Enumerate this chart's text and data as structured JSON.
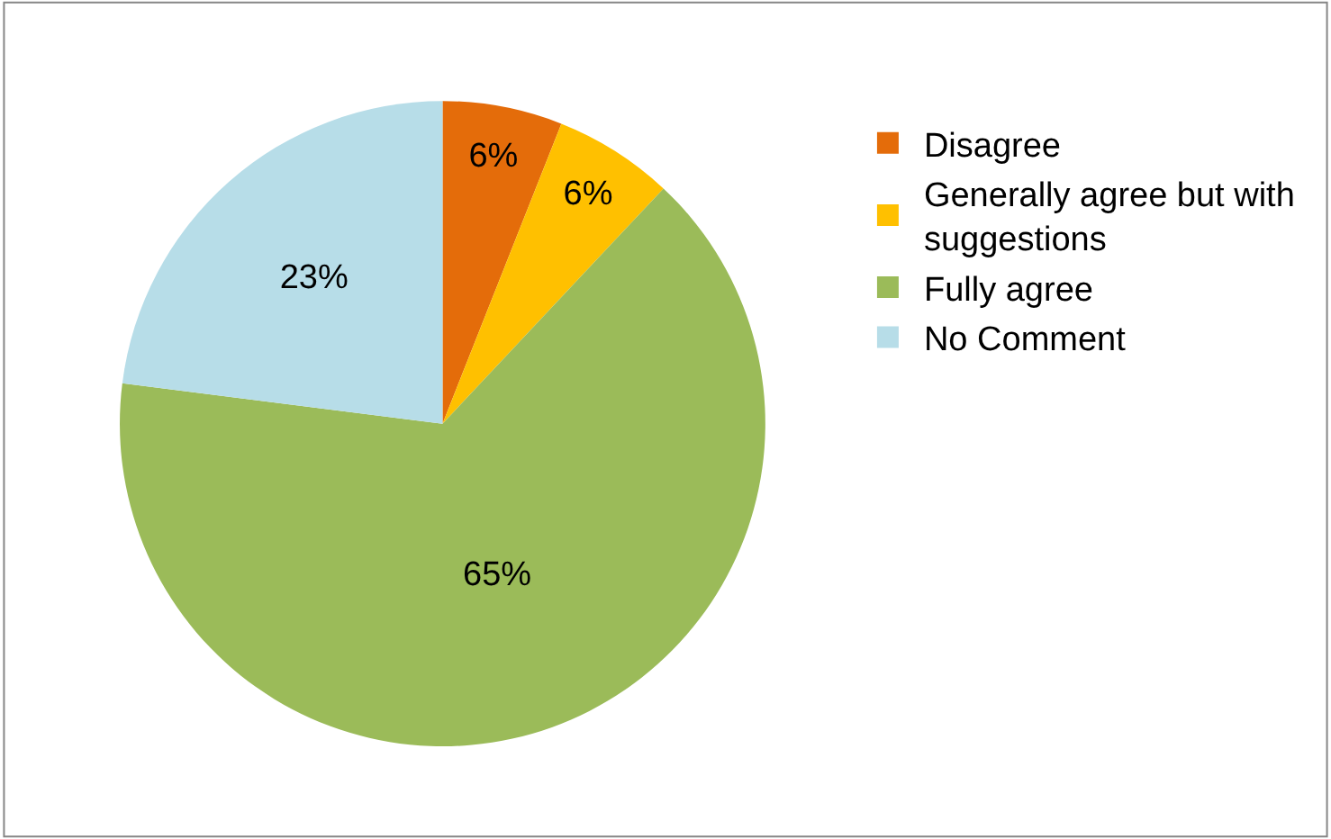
{
  "chart_data": {
    "type": "pie",
    "categories": [
      "Disagree",
      "Generally agree but with suggestions",
      "Fully agree",
      "No Comment"
    ],
    "values": [
      6,
      6,
      65,
      23
    ],
    "colors": [
      "#e46c0a",
      "#ffc000",
      "#9bbb59",
      "#b7dde8"
    ],
    "value_labels": [
      "6%",
      "6%",
      "65%",
      "23%"
    ],
    "legend": "right"
  }
}
